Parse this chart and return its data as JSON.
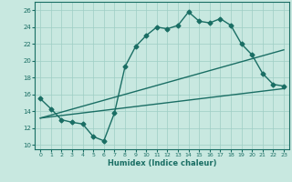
{
  "xlabel": "Humidex (Indice chaleur)",
  "xlim": [
    -0.5,
    23.5
  ],
  "ylim": [
    9.5,
    27
  ],
  "xticks": [
    0,
    1,
    2,
    3,
    4,
    5,
    6,
    7,
    8,
    9,
    10,
    11,
    12,
    13,
    14,
    15,
    16,
    17,
    18,
    19,
    20,
    21,
    22,
    23
  ],
  "yticks": [
    10,
    12,
    14,
    16,
    18,
    20,
    22,
    24,
    26
  ],
  "background_color": "#c8e8e0",
  "line_color": "#1a6e64",
  "grid_color": "#9ecec4",
  "line1_x": [
    0,
    1,
    2,
    3,
    4,
    5,
    6,
    7,
    8,
    9,
    10,
    11,
    12,
    13,
    14,
    15,
    16,
    17,
    18,
    19,
    20,
    21,
    22,
    23
  ],
  "line1_y": [
    15.5,
    14.3,
    13.0,
    12.7,
    12.5,
    11.0,
    10.5,
    13.8,
    19.3,
    21.7,
    23.0,
    24.0,
    23.8,
    24.2,
    25.8,
    24.7,
    24.5,
    25.0,
    24.2,
    22.0,
    20.7,
    18.5,
    17.2,
    17.0
  ],
  "line2_x": [
    0,
    23
  ],
  "line2_y": [
    13.2,
    16.7
  ],
  "line3_x": [
    0,
    23
  ],
  "line3_y": [
    13.2,
    21.3
  ],
  "marker": "D",
  "markersize": 2.5,
  "linewidth": 1.0
}
